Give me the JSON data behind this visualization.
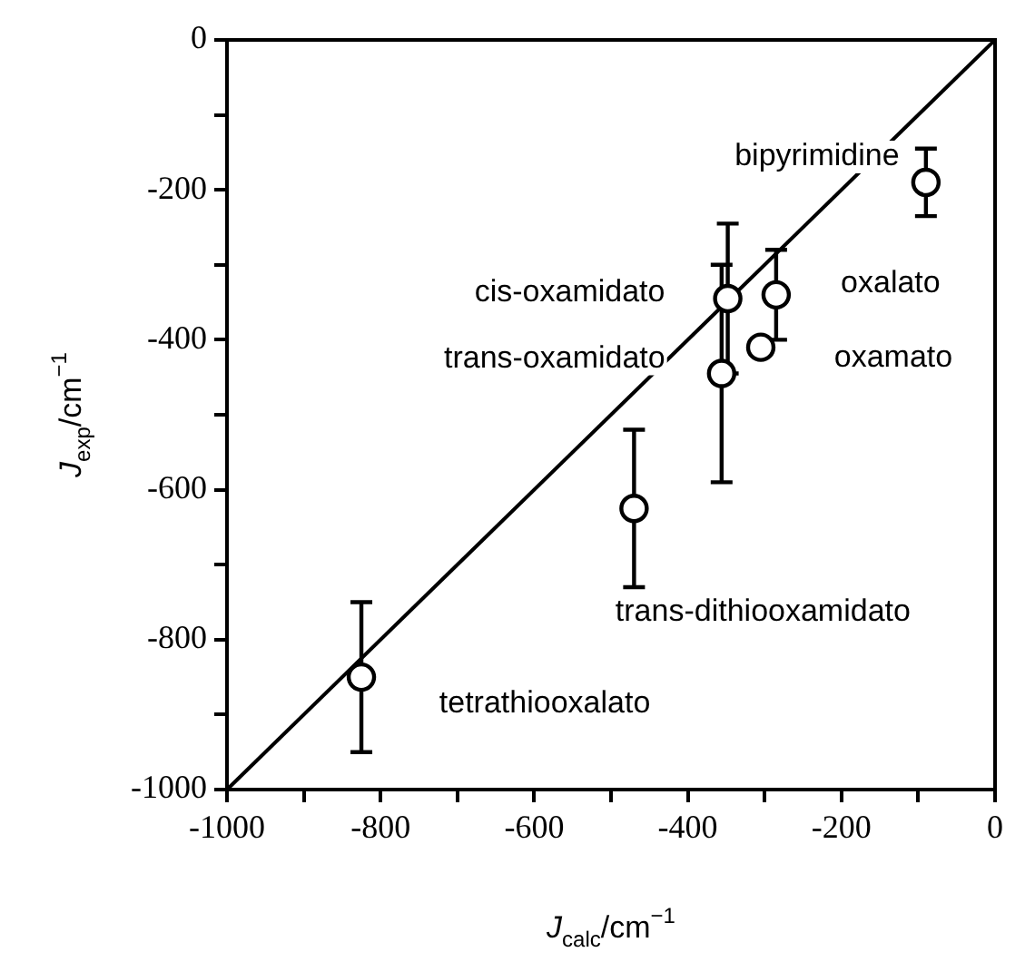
{
  "chart_data": {
    "type": "scatter",
    "xlabel": "J$_{calc}$/cm$^{−1}$",
    "ylabel": "J$_{exp}$/cm$^{−1}$",
    "xlim": [
      -1000,
      0
    ],
    "ylim": [
      -1000,
      0
    ],
    "xticks": [
      -1000,
      {
        "value": -900,
        "label": null
      },
      -800,
      {
        "value": -700,
        "label": null
      },
      -600,
      {
        "value": -500,
        "label": null
      },
      -400,
      {
        "value": -300,
        "label": null
      },
      -200,
      {
        "value": -100,
        "label": null
      },
      0
    ],
    "yticks": [
      -1000,
      {
        "value": -900,
        "label": null
      },
      -800,
      {
        "value": -700,
        "label": null
      },
      -600,
      {
        "value": -500,
        "label": null
      },
      -400,
      {
        "value": -300,
        "label": null
      },
      -200,
      {
        "value": -100,
        "label": null
      },
      0
    ],
    "grid": false,
    "legend": false,
    "marker": "circle",
    "series": [
      {
        "type": "line",
        "color": "#000000",
        "marker": "none",
        "x": [
          -1000,
          0
        ],
        "values": [
          -1000,
          0
        ]
      },
      {
        "color": "#000000",
        "x": [
          -825,
          -470,
          -348,
          -356,
          -305,
          -285,
          -90
        ],
        "values": [
          -850,
          -625,
          -345,
          -445,
          -410,
          -340,
          -190
        ],
        "errors": [
          100,
          [
            -730,
            -520
          ],
          100,
          [
            -590,
            -300
          ],
          null,
          60,
          45
        ]
      }
    ],
    "annotations": [
      {
        "text": "tetrathiooxalato",
        "x": -825,
        "y": -850
      },
      {
        "text": "trans-dithiooxamidato",
        "x": -470,
        "y": -625
      },
      {
        "text": "cis-oxamidato",
        "x": -348,
        "y": -345
      },
      {
        "text": "trans-oxamidato",
        "x": -356,
        "y": -445
      },
      {
        "text": "oxamato",
        "x": -305,
        "y": -410
      },
      {
        "text": "oxalato",
        "x": -285,
        "y": -340
      },
      {
        "text": "bipyrimidine",
        "x": -90,
        "y": -190
      }
    ]
  }
}
